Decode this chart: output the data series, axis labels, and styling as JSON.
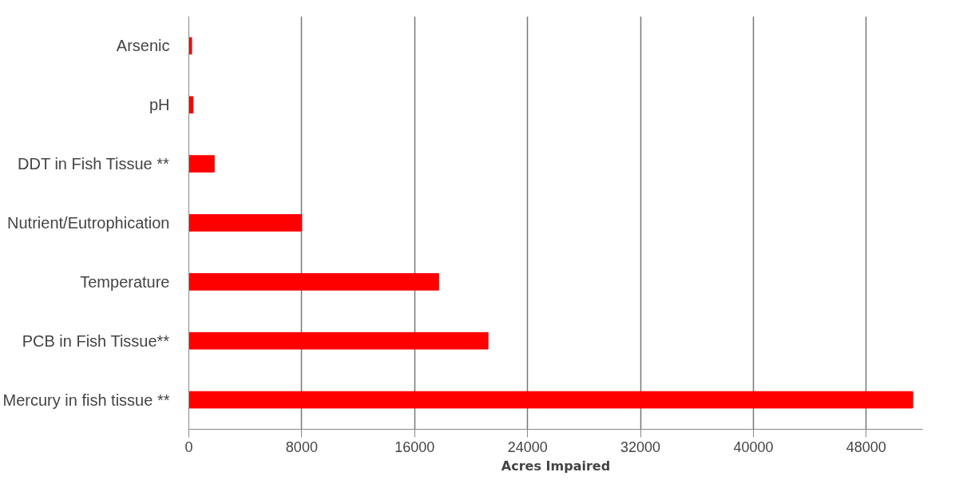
{
  "chart_data": {
    "type": "bar",
    "orientation": "horizontal",
    "xlabel": "Acres Impaired",
    "categories": [
      "Arsenic",
      "pH",
      "DDT in Fish Tissue **",
      "Nutrient/Eutrophication",
      "Temperature",
      "PCB in Fish Tissue**",
      "Mercury in fish tissue **"
    ],
    "values": [
      200,
      300,
      1800,
      8000,
      17700,
      21200,
      51300
    ],
    "color": "#ff0000",
    "xlim": [
      0,
      52000
    ],
    "xticks": [
      0,
      8000,
      16000,
      24000,
      32000,
      40000,
      48000
    ],
    "grid": "x"
  }
}
